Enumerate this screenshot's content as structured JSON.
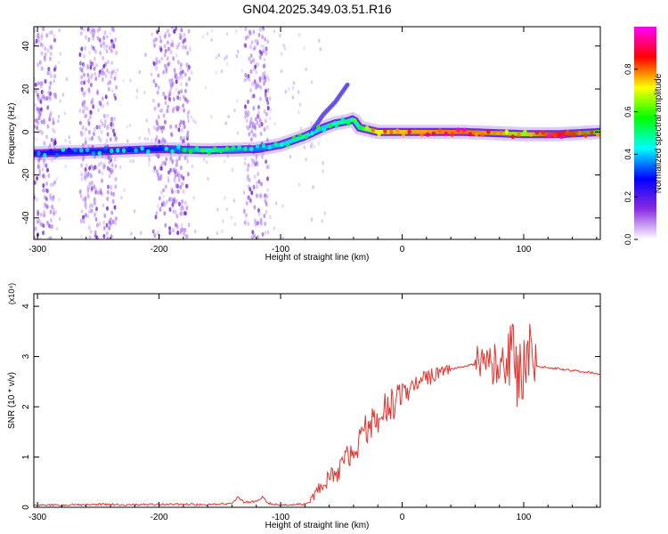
{
  "title": "GN04.2025.349.03.51.R16",
  "colors": {
    "snr_line": "#e8322c",
    "axis": "#000000",
    "background": "#ffffff"
  },
  "chart_data": [
    {
      "type": "heatmap",
      "title": "GN04.2025.349.03.51.R16",
      "xlabel": "Height of straight line (km)",
      "ylabel": "Frequency (Hz)",
      "xlim": [
        -303,
        163
      ],
      "ylim": [
        -50,
        49
      ],
      "x_ticks": [
        -300,
        -200,
        -100,
        0,
        100
      ],
      "x_tick_labels": [
        "-300",
        "-200",
        "-100",
        "0",
        "100"
      ],
      "y_ticks": [
        -40,
        -20,
        0,
        20,
        40
      ],
      "y_tick_labels": [
        "-40",
        "-20",
        "0",
        "20",
        "40"
      ],
      "colorbar": {
        "label": "Normalized spectral amplitude",
        "range": [
          0,
          1
        ],
        "ticks": [
          0.0,
          0.2,
          0.4,
          0.6,
          0.8
        ],
        "tick_labels": [
          "0.0",
          "0.2",
          "0.4",
          "0.6",
          "0.8"
        ],
        "colormap": [
          "#ffffff",
          "#8a2be2",
          "#0000ff",
          "#00ffff",
          "#00ff00",
          "#ffff00",
          "#ff0000",
          "#ff00ff"
        ]
      },
      "ridge": {
        "name": "main frequency trace",
        "x": [
          -303,
          -250,
          -200,
          -160,
          -120,
          -100,
          -80,
          -65,
          -55,
          -45,
          -40,
          -35,
          -20,
          0,
          50,
          100,
          130,
          163
        ],
        "y": [
          -10,
          -9,
          -8,
          -8.5,
          -8,
          -6,
          -2,
          2,
          4,
          5,
          6,
          2,
          0,
          0,
          0,
          -1,
          -1,
          0
        ],
        "amplitude": [
          0.25,
          0.3,
          0.3,
          0.45,
          0.35,
          0.4,
          0.45,
          0.4,
          0.45,
          0.5,
          0.45,
          0.5,
          0.7,
          0.75,
          0.8,
          0.65,
          0.85,
          0.6
        ]
      },
      "branch": {
        "name": "upper branch",
        "x": [
          -75,
          -65,
          -55,
          -50,
          -45
        ],
        "y": [
          0,
          8,
          14,
          18,
          22
        ]
      },
      "noise_bands": [
        {
          "x_start": -303,
          "x_end": -285
        },
        {
          "x_start": -265,
          "x_end": -235
        },
        {
          "x_start": -205,
          "x_end": -175
        },
        {
          "x_start": -130,
          "x_end": -110
        }
      ]
    },
    {
      "type": "line",
      "title": "",
      "xlabel": "Height of straight line (km)",
      "ylabel": "SNR (10 * v/v)",
      "y_multiplier": "(x10⁴)",
      "xlim": [
        -303,
        163
      ],
      "ylim": [
        0,
        4.25
      ],
      "x_ticks": [
        -300,
        -200,
        -100,
        0,
        100
      ],
      "x_tick_labels": [
        "-300",
        "-200",
        "-100",
        "0",
        "100"
      ],
      "y_ticks": [
        0,
        1,
        2,
        3,
        4
      ],
      "y_tick_labels": [
        "0",
        "1",
        "2",
        "3",
        "4"
      ],
      "series": [
        {
          "x": [
            -303,
            -280,
            -250,
            -220,
            -180,
            -160,
            -140,
            -135,
            -130,
            -120,
            -115,
            -110,
            -100,
            -90,
            -80,
            -75,
            -70,
            -65,
            -60,
            -55,
            -50,
            -45,
            -40,
            -35,
            -30,
            -25,
            -20,
            -15,
            -10,
            -5,
            0,
            5,
            10,
            15,
            20,
            25,
            30,
            40,
            50,
            60,
            70,
            80,
            85,
            90,
            95,
            100,
            103,
            106,
            110,
            120,
            130,
            140,
            150,
            163
          ],
          "y": [
            0.05,
            0.04,
            0.06,
            0.05,
            0.06,
            0.05,
            0.08,
            0.2,
            0.1,
            0.12,
            0.2,
            0.08,
            0.05,
            0.05,
            0.06,
            0.1,
            0.3,
            0.5,
            0.6,
            0.7,
            0.8,
            1.0,
            1.1,
            1.3,
            1.5,
            1.7,
            1.8,
            2.0,
            2.05,
            2.1,
            2.2,
            2.3,
            2.45,
            2.5,
            2.55,
            2.65,
            2.7,
            2.75,
            2.8,
            2.85,
            2.85,
            2.85,
            2.8,
            2.8,
            2.85,
            2.8,
            2.9,
            2.8,
            2.8,
            2.78,
            2.75,
            2.72,
            2.7,
            2.65
          ]
        }
      ]
    }
  ]
}
